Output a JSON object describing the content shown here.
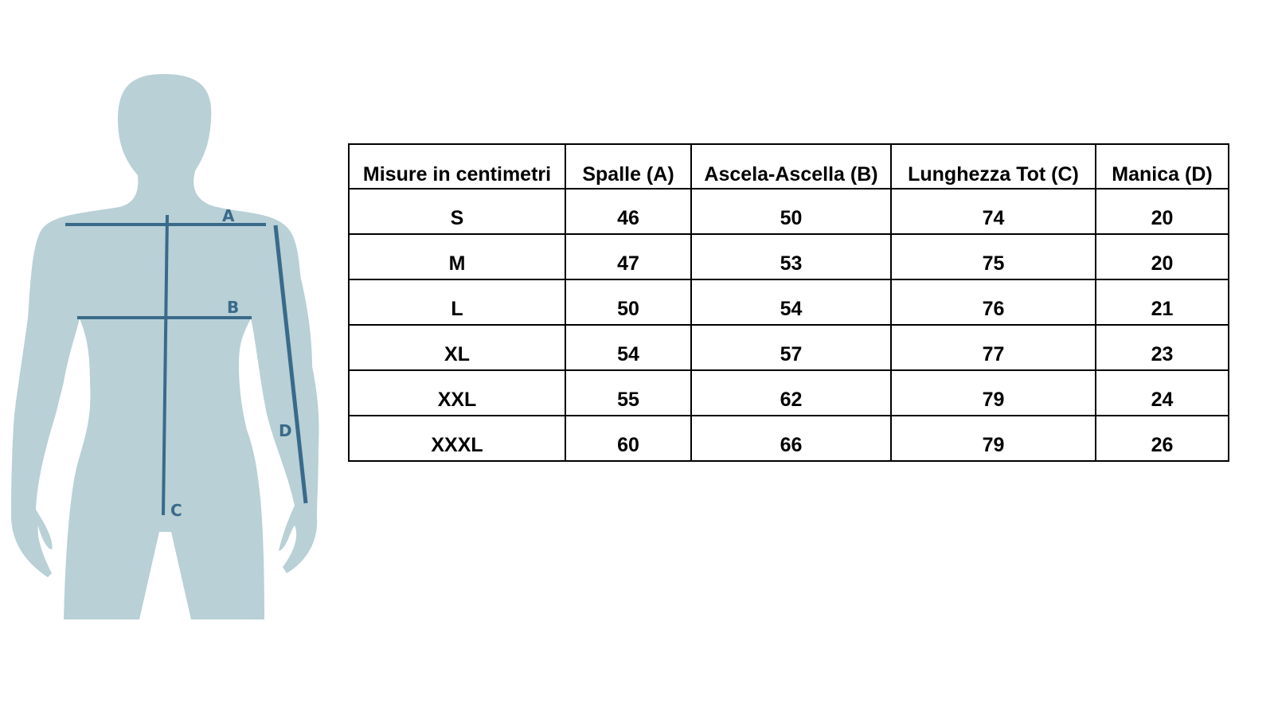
{
  "figure": {
    "labels": {
      "a": "A",
      "b": "B",
      "c": "C",
      "d": "D"
    },
    "colors": {
      "body": "#b8d0d6",
      "lines": "#3a6a8a"
    }
  },
  "table": {
    "headers": [
      "Misure in centimetri",
      "Spalle (A)",
      "Ascela-Ascella (B)",
      "Lunghezza Tot (C)",
      "Manica (D)"
    ],
    "rows": [
      [
        "S",
        "46",
        "50",
        "74",
        "20"
      ],
      [
        "M",
        "47",
        "53",
        "75",
        "20"
      ],
      [
        "L",
        "50",
        "54",
        "76",
        "21"
      ],
      [
        "XL",
        "54",
        "57",
        "77",
        "23"
      ],
      [
        "XXL",
        "55",
        "62",
        "79",
        "24"
      ],
      [
        "XXXL",
        "60",
        "66",
        "79",
        "26"
      ]
    ]
  }
}
